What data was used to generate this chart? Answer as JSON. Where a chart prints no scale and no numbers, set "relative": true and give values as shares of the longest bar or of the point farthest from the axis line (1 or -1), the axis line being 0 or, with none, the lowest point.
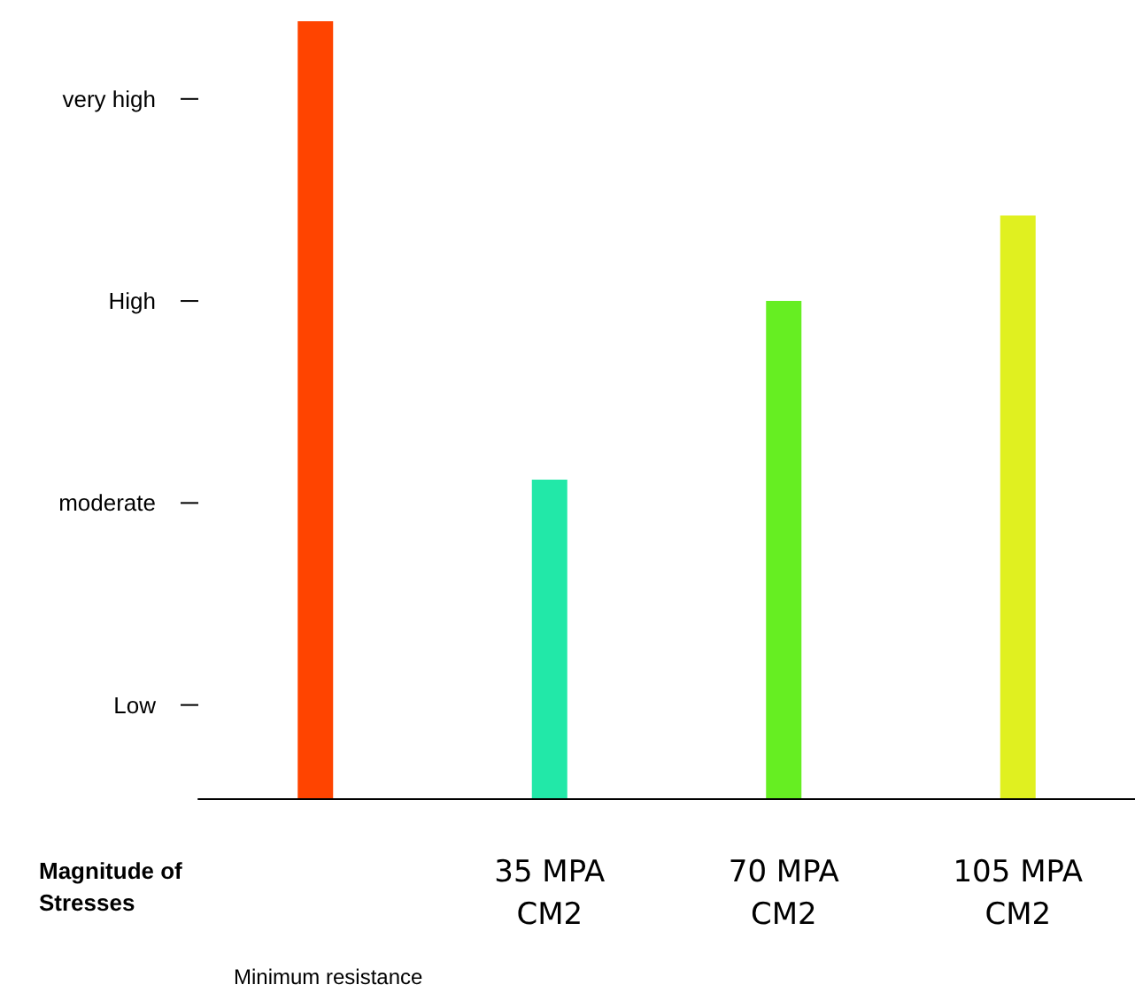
{
  "chart_data": {
    "type": "bar",
    "relative": true,
    "categories": [
      null,
      "35 MPA\nCM2",
      "70 MPA\nCM2",
      "105 MPA\nCM2"
    ],
    "values": [
      1,
      0.41,
      0.64,
      0.75
    ],
    "colors": [
      "#ff4400",
      "#22e8a8",
      "#66ee22",
      "#e0f020"
    ],
    "xlabel": "Magnitude of\nStresses",
    "annotations": [
      "Low",
      "moderate",
      "High",
      "very high",
      "Minimum resistance"
    ]
  }
}
